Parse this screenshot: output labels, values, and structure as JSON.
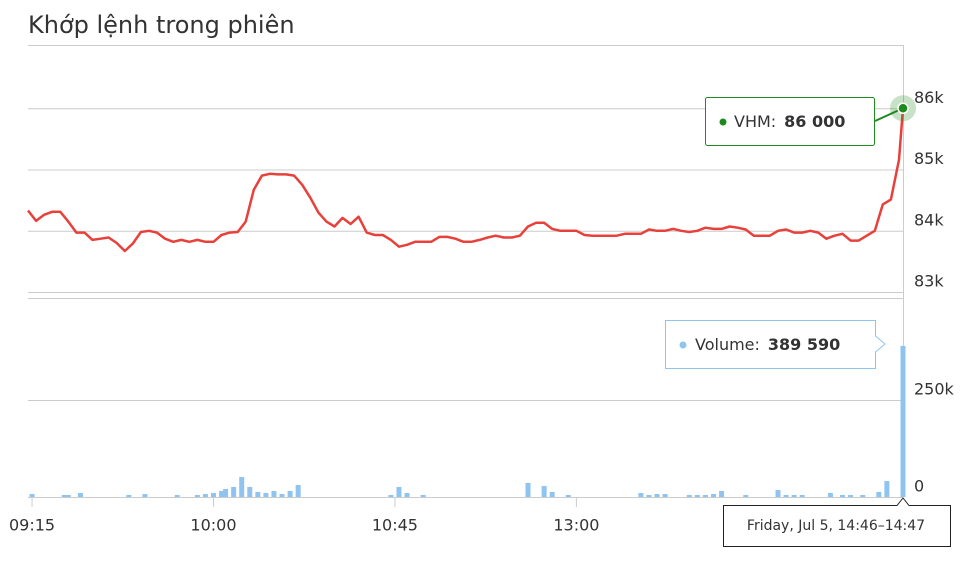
{
  "chart_data": [
    {
      "type": "line",
      "title": "Khớp lệnh trong phiên",
      "x": [
        -1,
        1,
        3,
        5,
        7,
        9,
        11,
        13,
        15,
        17,
        19,
        21,
        23,
        25,
        27,
        29,
        31,
        33,
        35,
        37,
        39,
        41,
        43,
        45,
        47,
        49,
        51,
        53,
        55,
        57,
        59,
        61,
        63,
        65,
        67,
        69,
        71,
        73,
        75,
        77,
        79,
        81,
        83,
        85,
        87,
        89,
        91,
        93,
        95,
        97,
        99,
        101,
        103,
        105,
        107,
        109,
        111,
        113,
        115,
        117,
        119,
        121,
        123,
        125,
        127,
        129,
        131,
        133,
        135,
        137,
        139,
        141,
        143,
        145,
        147,
        149,
        151,
        153,
        155,
        157,
        159,
        161,
        163,
        165,
        167,
        169,
        171,
        173,
        175,
        177,
        179,
        181,
        183,
        185,
        187,
        189,
        191,
        193,
        195,
        197,
        199,
        201,
        203,
        205,
        207,
        209,
        211,
        213,
        215,
        216
      ],
      "series": [
        {
          "name": "VHM",
          "color": "#e8413b",
          "values": [
            84330,
            84160,
            84260,
            84310,
            84310,
            84150,
            83970,
            83970,
            83850,
            83870,
            83890,
            83800,
            83670,
            83790,
            83980,
            84000,
            83970,
            83870,
            83820,
            83850,
            83820,
            83850,
            83820,
            83820,
            83930,
            83970,
            83980,
            84150,
            84670,
            84900,
            84930,
            84920,
            84920,
            84900,
            84750,
            84540,
            84300,
            84150,
            84070,
            84210,
            84110,
            84230,
            83970,
            83930,
            83930,
            83850,
            83740,
            83770,
            83820,
            83820,
            83820,
            83900,
            83900,
            83870,
            83820,
            83820,
            83850,
            83890,
            83920,
            83890,
            83890,
            83920,
            84070,
            84130,
            84130,
            84030,
            84000,
            84000,
            84000,
            83930,
            83920,
            83920,
            83920,
            83920,
            83950,
            83950,
            83950,
            84020,
            84000,
            84000,
            84030,
            84000,
            83980,
            84000,
            84050,
            84030,
            84030,
            84070,
            84050,
            84020,
            83920,
            83920,
            83920,
            84000,
            84020,
            83970,
            83970,
            84000,
            83970,
            83870,
            83920,
            83950,
            83840,
            83840,
            83920,
            84000,
            84430,
            84510,
            85160,
            86000
          ]
        }
      ],
      "xlim": [
        -1,
        216
      ],
      "xticks": [
        {
          "value": 0,
          "label": "09:15"
        },
        {
          "value": 45,
          "label": "10:00"
        },
        {
          "value": 90,
          "label": "10:45"
        },
        {
          "value": 135,
          "label": "13:00"
        }
      ],
      "ylim": [
        83000,
        87000
      ],
      "yticks": [
        {
          "value": 83000,
          "label": "83k"
        },
        {
          "value": 84000,
          "label": "84k"
        },
        {
          "value": 85000,
          "label": "85k"
        },
        {
          "value": 86000,
          "label": "86k"
        }
      ],
      "grid": true,
      "tooltip": {
        "value_label": "86 000",
        "border_color": "#1e8a1e"
      }
    },
    {
      "type": "bar",
      "x": [
        0,
        8,
        9,
        12,
        24,
        28,
        36,
        41,
        43,
        45,
        47,
        48,
        50,
        52,
        54,
        56,
        58,
        60,
        62,
        64,
        66,
        89,
        91,
        93,
        97,
        123,
        127,
        129,
        133,
        151,
        153,
        155,
        157,
        163,
        165,
        167,
        169,
        171,
        177,
        185,
        187,
        189,
        191,
        198,
        201,
        203,
        206,
        210,
        212,
        216
      ],
      "series": [
        {
          "name": "Volume",
          "color": "#90c4f0",
          "values": [
            7700,
            5200,
            5200,
            10300,
            5200,
            7700,
            5200,
            5200,
            7700,
            10300,
            15500,
            20600,
            25800,
            51500,
            25800,
            12900,
            10300,
            15500,
            7700,
            15500,
            30900,
            5200,
            25800,
            10300,
            5200,
            36100,
            28300,
            12900,
            5200,
            10300,
            5200,
            7700,
            7700,
            5200,
            5200,
            5200,
            7700,
            15500,
            5200,
            18000,
            5200,
            5200,
            5200,
            10300,
            5200,
            5200,
            5200,
            12900,
            41200,
            389590
          ]
        }
      ],
      "xlim": [
        -1,
        216
      ],
      "ylim": [
        0,
        513000
      ],
      "yticks": [
        0,
        {
          "value": 250000,
          "label": "250k"
        }
      ],
      "grid": true,
      "tooltip": {
        "value_label": "389 590",
        "x_label": "Friday, Jul 5, 14:46–14:47",
        "border_color": "#90c4f0"
      }
    }
  ]
}
